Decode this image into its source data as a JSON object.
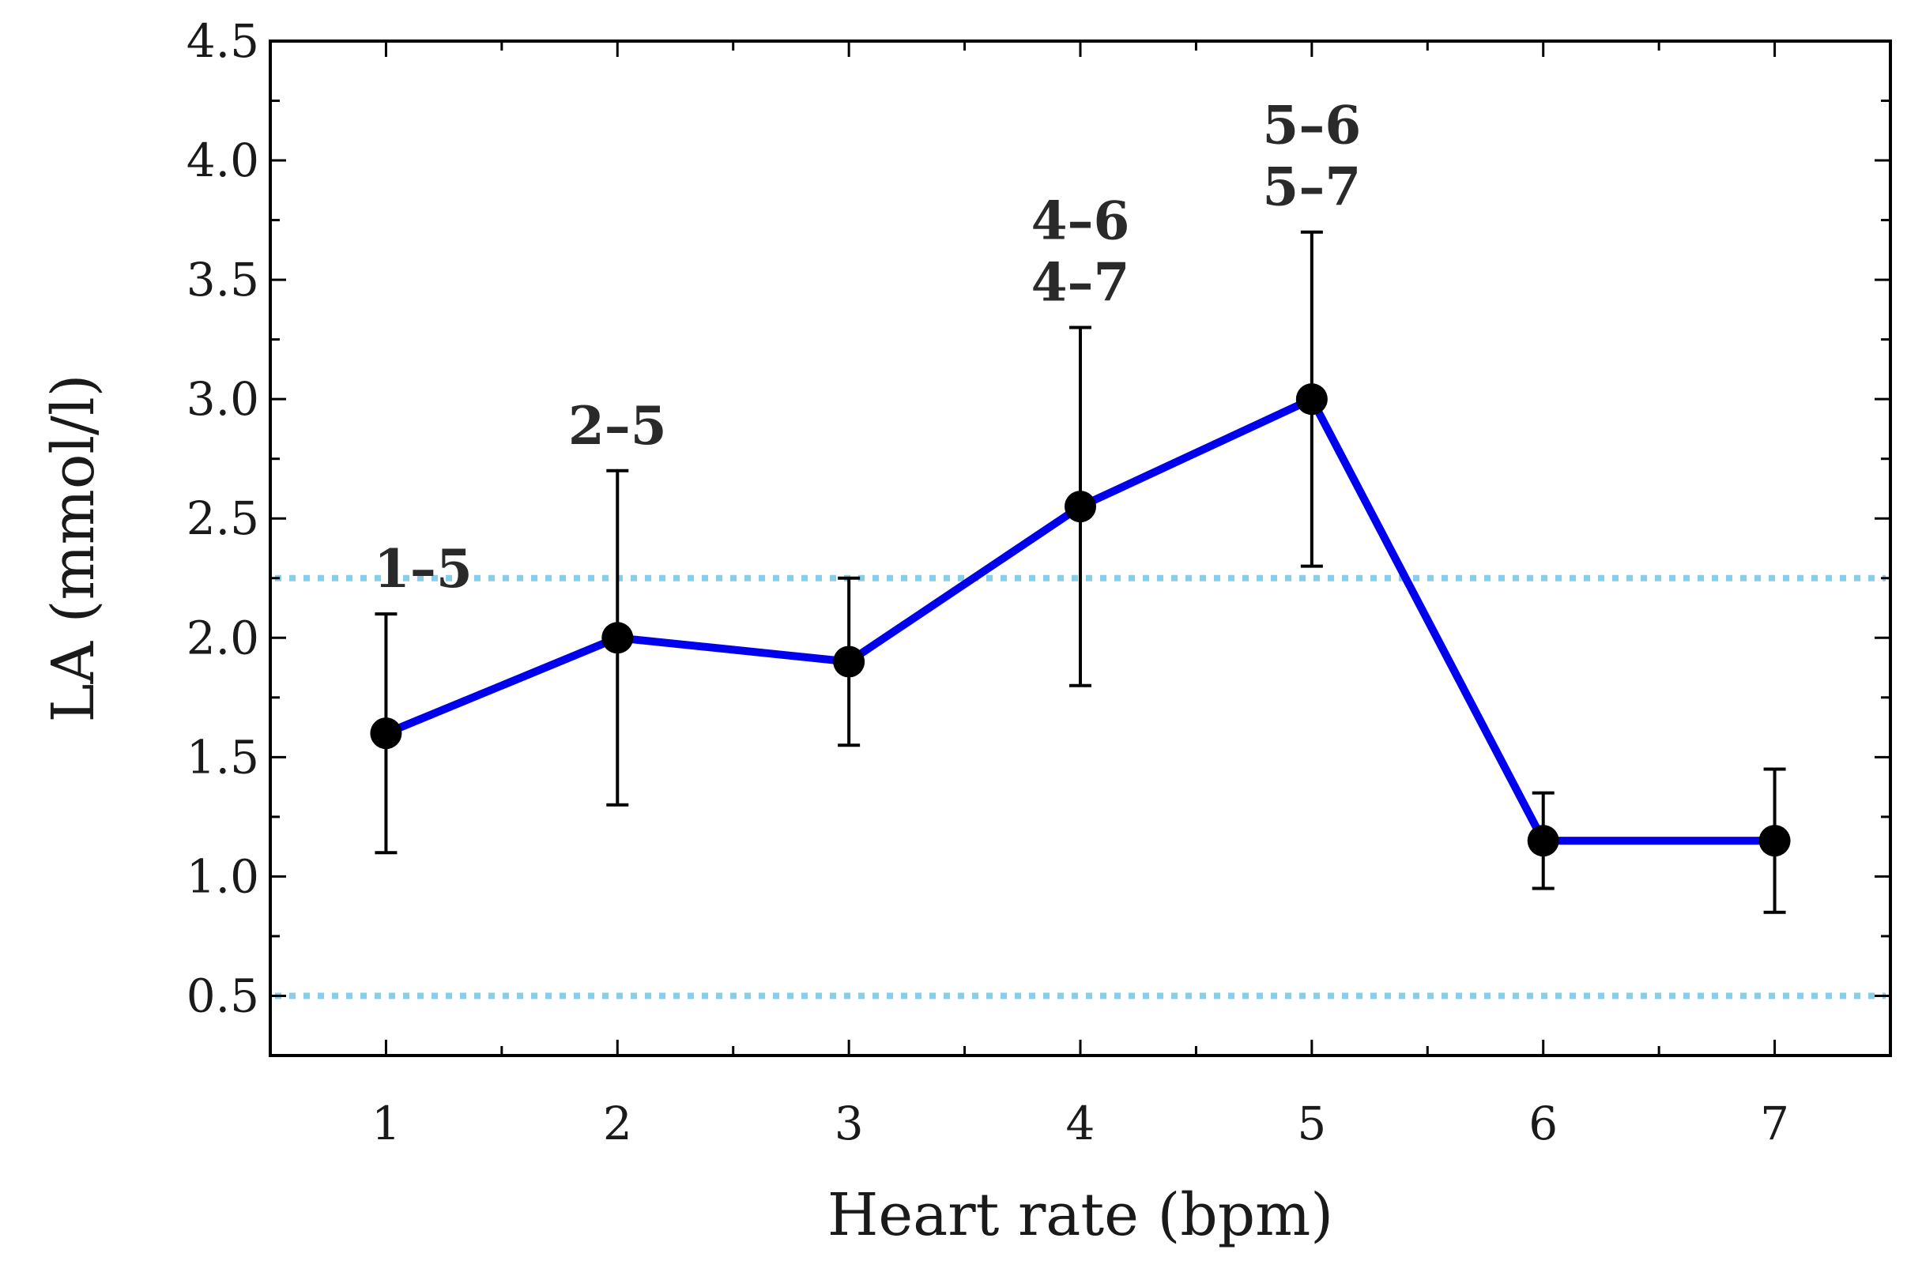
{
  "chart_data": {
    "type": "line",
    "title": "",
    "xlabel": "Heart rate (bpm)",
    "ylabel": "LA (mmol/l)",
    "xlim": [
      0.5,
      7.5
    ],
    "ylim": [
      0.25,
      4.5
    ],
    "xticks": [
      "1",
      "2",
      "3",
      "4",
      "5",
      "6",
      "7"
    ],
    "yticks": [
      "0.5",
      "1.0",
      "1.5",
      "2.0",
      "2.5",
      "3.0",
      "3.5",
      "4.0",
      "4.5"
    ],
    "grid": false,
    "series": [
      {
        "name": "LA",
        "x": [
          1,
          2,
          3,
          4,
          5,
          6,
          7
        ],
        "values": [
          1.6,
          2.0,
          1.9,
          2.55,
          3.0,
          1.15,
          1.15
        ],
        "error_low": [
          1.1,
          1.3,
          1.55,
          1.8,
          2.3,
          0.95,
          0.85
        ],
        "error_high": [
          2.1,
          2.7,
          2.25,
          3.3,
          3.7,
          1.35,
          1.45
        ],
        "color": "#0000ee"
      }
    ],
    "reference_lines": [
      {
        "y": 2.25,
        "color": "#87ceeb",
        "style": "dotted"
      },
      {
        "y": 0.5,
        "color": "#87ceeb",
        "style": "dotted"
      }
    ],
    "annotations": [
      {
        "x": 1,
        "lines": [
          "1–5"
        ]
      },
      {
        "x": 2,
        "lines": [
          "2–5"
        ]
      },
      {
        "x": 4,
        "lines": [
          "4–6",
          "4–7"
        ]
      },
      {
        "x": 5,
        "lines": [
          "5–6",
          "5–7"
        ]
      }
    ]
  }
}
